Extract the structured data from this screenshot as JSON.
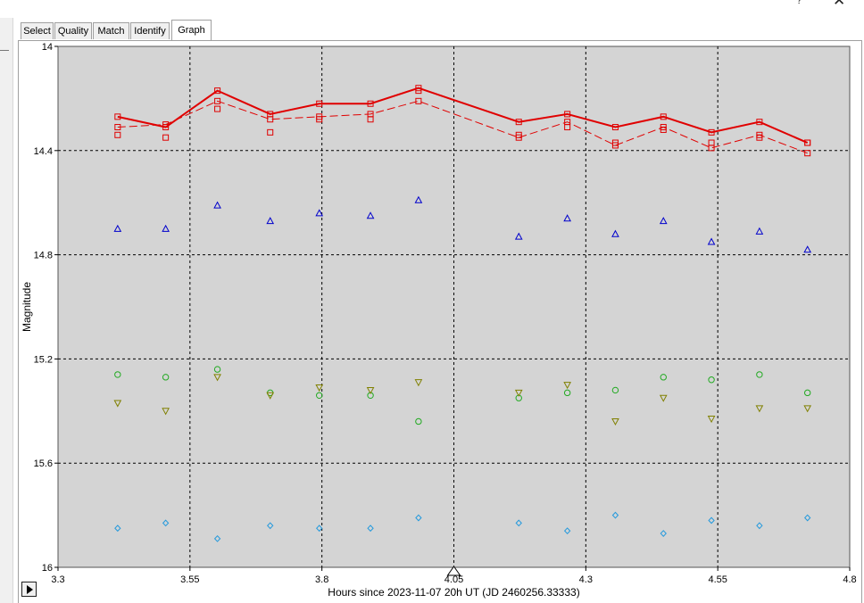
{
  "window": {
    "help_glyph": "?",
    "close_glyph": "✕"
  },
  "tabs": [
    {
      "label": "Select",
      "active": false
    },
    {
      "label": "Quality",
      "active": false
    },
    {
      "label": "Match",
      "active": false
    },
    {
      "label": "Identify",
      "active": false
    },
    {
      "label": "Graph",
      "active": true
    }
  ],
  "chart_data": {
    "type": "scatter",
    "xlabel": "Hours since 2023-11-07 20h UT (JD 2460256.33333)",
    "ylabel": "Magnitude",
    "xlim": [
      3.3,
      4.8
    ],
    "ylim": [
      14.0,
      16.0
    ],
    "y_inverted": true,
    "x_ticks": [
      "3.3",
      "3.55",
      "3.8",
      "4.05",
      "4.3",
      "4.55",
      "4.8"
    ],
    "y_ticks": [
      "14",
      "14.4",
      "14.8",
      "15.2",
      "15.6",
      "16"
    ],
    "grid": true,
    "x": [
      3.413,
      3.504,
      3.602,
      3.702,
      3.795,
      3.892,
      3.983,
      4.173,
      4.265,
      4.356,
      4.447,
      4.538,
      4.629,
      4.72
    ],
    "series": [
      {
        "marker": "square",
        "color": "#e00000",
        "line": "solid",
        "values": [
          14.27,
          14.31,
          14.17,
          14.26,
          14.22,
          14.22,
          14.16,
          14.29,
          14.26,
          14.31,
          14.27,
          14.33,
          14.29,
          14.37
        ]
      },
      {
        "marker": "square",
        "color": "#e00000",
        "line": "dashed",
        "values": [
          14.31,
          14.3,
          14.21,
          14.28,
          14.27,
          14.26,
          14.21,
          14.35,
          14.29,
          14.38,
          14.31,
          14.39,
          14.34,
          14.41
        ]
      },
      {
        "marker": "square",
        "color": "#e00000",
        "line": "none",
        "values": [
          14.34,
          14.35,
          14.24,
          14.33,
          14.28,
          14.28,
          14.17,
          14.34,
          14.31,
          14.37,
          14.32,
          14.37,
          14.35,
          14.37
        ]
      },
      {
        "marker": "triangle-up",
        "color": "#0000cc",
        "line": "none",
        "values": [
          14.7,
          14.7,
          14.61,
          14.67,
          14.64,
          14.65,
          14.59,
          14.73,
          14.66,
          14.72,
          14.67,
          14.75,
          14.71,
          14.78
        ]
      },
      {
        "marker": "circle",
        "color": "#22aa22",
        "line": "none",
        "values": [
          15.26,
          15.27,
          15.24,
          15.33,
          15.34,
          15.34,
          15.44,
          15.35,
          15.33,
          15.32,
          15.27,
          15.28,
          15.26,
          15.33
        ]
      },
      {
        "marker": "triangle-down",
        "color": "#808000",
        "line": "none",
        "values": [
          15.37,
          15.4,
          15.27,
          15.34,
          15.31,
          15.32,
          15.29,
          15.33,
          15.3,
          15.44,
          15.35,
          15.43,
          15.39,
          15.39
        ]
      },
      {
        "marker": "diamond",
        "color": "#2299dd",
        "line": "none",
        "values": [
          15.85,
          15.83,
          15.89,
          15.84,
          15.85,
          15.85,
          15.81,
          15.83,
          15.86,
          15.8,
          15.87,
          15.82,
          15.84,
          15.81
        ]
      }
    ]
  }
}
